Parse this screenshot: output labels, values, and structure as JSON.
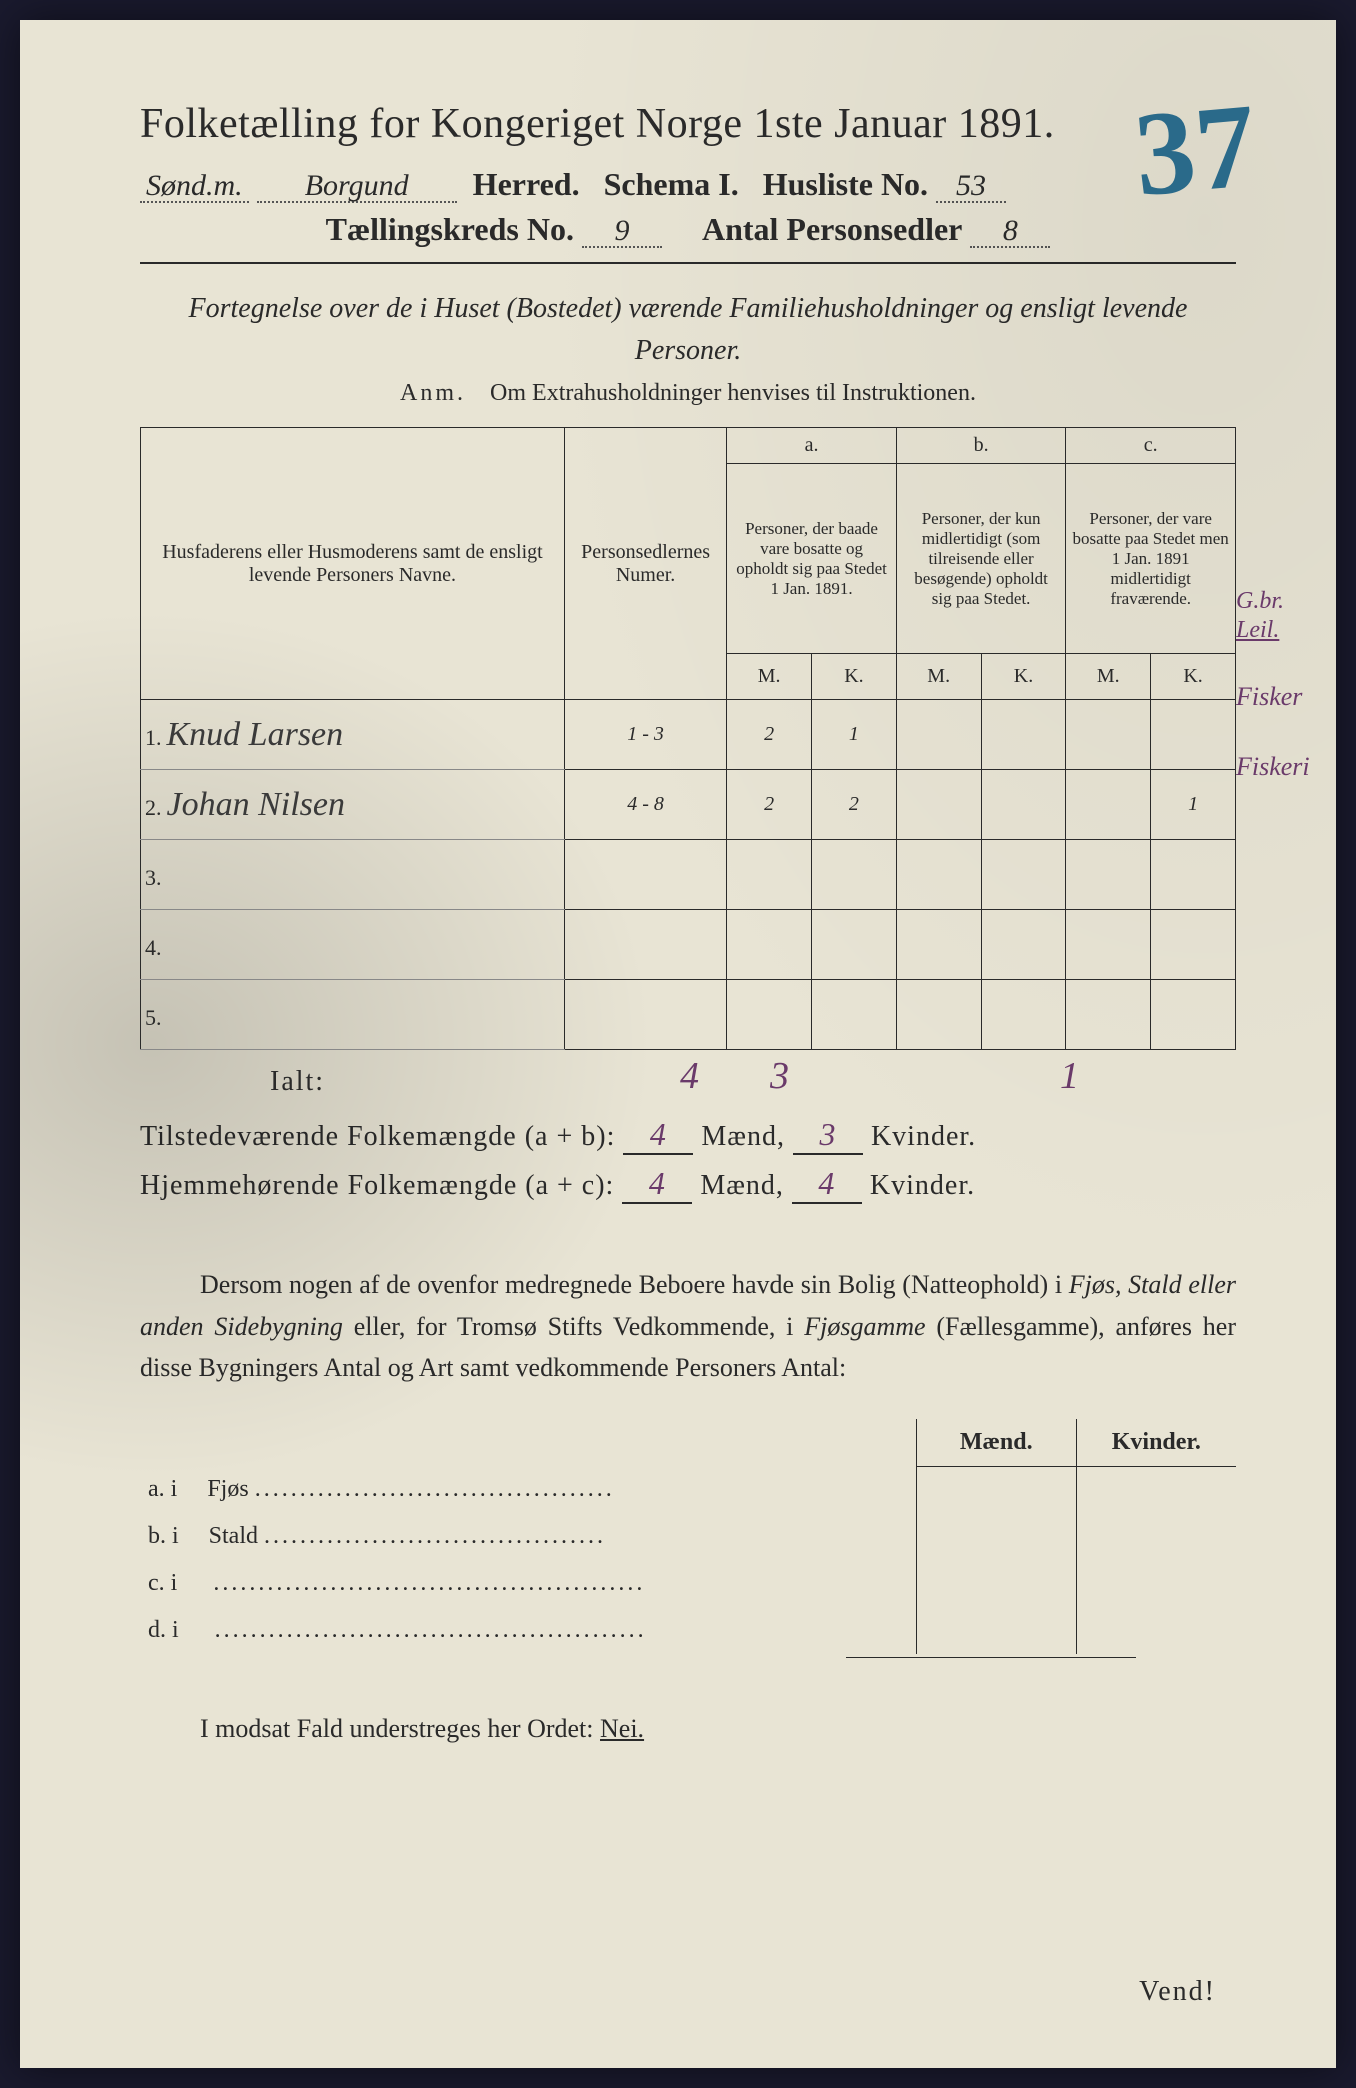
{
  "header": {
    "title": "Folketælling for Kongeriget Norge 1ste Januar 1891.",
    "big_number": "37",
    "district_prefix": "Sønd.m.",
    "district_name": "Borgund",
    "herred_label": "Herred.",
    "schema_label": "Schema I.",
    "husliste_label": "Husliste No.",
    "husliste_no": "53",
    "kreds_label": "Tællingskreds No.",
    "kreds_no": "9",
    "antal_label": "Antal Personsedler",
    "antal_val": "8"
  },
  "subtitle": "Fortegnelse over de i Huset (Bostedet) værende Familiehusholdninger og ensligt levende Personer.",
  "anm": {
    "label": "Anm.",
    "text": "Om Extrahusholdninger henvises til Instruktionen."
  },
  "table": {
    "col_names": "Husfaderens eller Husmoderens samt de ensligt levende Personers Navne.",
    "col_num": "Personsedlernes Numer.",
    "col_a_label": "a.",
    "col_a": "Personer, der baade vare bosatte og opholdt sig paa Stedet 1 Jan. 1891.",
    "col_b_label": "b.",
    "col_b": "Personer, der kun midlertidigt (som tilreisende eller besøgende) opholdt sig paa Stedet.",
    "col_c_label": "c.",
    "col_c": "Personer, der vare bosatte paa Stedet men 1 Jan. 1891 midlertidigt fraværende.",
    "m": "M.",
    "k": "K.",
    "margin_header_1": "G.br.",
    "margin_header_2": "Leil.",
    "rows": [
      {
        "idx": "1.",
        "name": "Knud Larsen",
        "num": "1 - 3",
        "a_m": "2",
        "a_k": "1",
        "b_m": "",
        "b_k": "",
        "c_m": "",
        "c_k": "",
        "note": "Fisker"
      },
      {
        "idx": "2.",
        "name": "Johan Nilsen",
        "num": "4 - 8",
        "a_m": "2",
        "a_k": "2",
        "b_m": "",
        "b_k": "",
        "c_m": "",
        "c_k": "1",
        "note": "Fiskeri"
      },
      {
        "idx": "3.",
        "name": "",
        "num": "",
        "a_m": "",
        "a_k": "",
        "b_m": "",
        "b_k": "",
        "c_m": "",
        "c_k": "",
        "note": ""
      },
      {
        "idx": "4.",
        "name": "",
        "num": "",
        "a_m": "",
        "a_k": "",
        "b_m": "",
        "b_k": "",
        "c_m": "",
        "c_k": "",
        "note": ""
      },
      {
        "idx": "5.",
        "name": "",
        "num": "",
        "a_m": "",
        "a_k": "",
        "b_m": "",
        "b_k": "",
        "c_m": "",
        "c_k": "",
        "note": ""
      }
    ],
    "totals": {
      "a_m": "4",
      "a_k": "3",
      "c_k": "1"
    }
  },
  "ialt": "Ialt:",
  "summary": {
    "line1_label": "Tilstedeværende Folkemængde (a + b):",
    "line1_m": "4",
    "line1_k": "3",
    "line2_label": "Hjemmehørende Folkemængde (a + c):",
    "line2_m": "4",
    "line2_k": "4",
    "maend": "Mænd,",
    "kvinder": "Kvinder."
  },
  "para": {
    "text1": "Dersom nogen af de ovenfor medregnede Beboere havde sin Bolig (Natteophold) i ",
    "it1": "Fjøs, Stald eller anden Sidebygning",
    "text2": " eller, for Tromsø Stifts Vedkommende, i ",
    "it2": "Fjøsgamme",
    "text3": " (Fællesgamme), anføres her disse Bygningers Antal og Art samt vedkommende Personers Antal:"
  },
  "bottom": {
    "maend": "Mænd.",
    "kvinder": "Kvinder.",
    "rows": [
      {
        "label": "a.  i",
        "type": "Fjøs"
      },
      {
        "label": "b.  i",
        "type": "Stald"
      },
      {
        "label": "c.  i",
        "type": ""
      },
      {
        "label": "d.  i",
        "type": ""
      }
    ]
  },
  "modsat": {
    "text": "I modsat Fald understreges her Ordet: ",
    "nei": "Nei."
  },
  "vend": "Vend!",
  "colors": {
    "paper": "#e8e4d4",
    "ink": "#2a2a2a",
    "hand_purple": "#6a3a6a",
    "hand_blue": "#2a6a8a"
  }
}
